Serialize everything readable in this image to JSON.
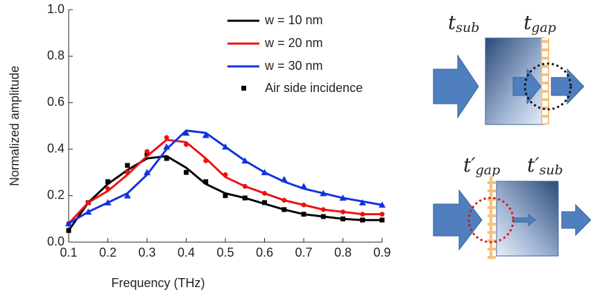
{
  "chart_data": {
    "type": "line",
    "xlabel": "Frequency (THz)",
    "ylabel": "Normalized amplitude",
    "x": [
      0.1,
      0.15,
      0.2,
      0.25,
      0.3,
      0.35,
      0.4,
      0.45,
      0.5,
      0.55,
      0.6,
      0.65,
      0.7,
      0.75,
      0.8,
      0.85,
      0.9
    ],
    "series": [
      {
        "name": "w = 10 nm",
        "color": "#000000",
        "marker": "square",
        "values": [
          0.05,
          0.17,
          0.25,
          0.31,
          0.36,
          0.37,
          0.32,
          0.25,
          0.21,
          0.19,
          0.165,
          0.14,
          0.12,
          0.11,
          0.1,
          0.095,
          0.095
        ],
        "marker_values": [
          0.05,
          0.17,
          0.26,
          0.33,
          0.38,
          0.36,
          0.3,
          0.26,
          0.2,
          0.19,
          0.17,
          0.14,
          0.12,
          0.11,
          0.1,
          0.095,
          0.095
        ]
      },
      {
        "name": "w = 20 nm",
        "color": "#ee1111",
        "marker": "circle",
        "values": [
          0.08,
          0.17,
          0.22,
          0.29,
          0.37,
          0.44,
          0.43,
          0.36,
          0.28,
          0.24,
          0.21,
          0.18,
          0.16,
          0.14,
          0.13,
          0.12,
          0.12
        ],
        "marker_values": [
          0.08,
          0.17,
          0.23,
          0.3,
          0.39,
          0.45,
          0.42,
          0.35,
          0.29,
          0.24,
          0.21,
          0.18,
          0.16,
          0.14,
          0.13,
          0.12,
          0.12
        ]
      },
      {
        "name": "w = 30 nm",
        "color": "#1133dd",
        "marker": "triangle",
        "values": [
          0.08,
          0.13,
          0.17,
          0.21,
          0.29,
          0.4,
          0.48,
          0.47,
          0.41,
          0.35,
          0.3,
          0.26,
          0.23,
          0.21,
          0.19,
          0.175,
          0.16
        ],
        "marker_values": [
          0.08,
          0.13,
          0.17,
          0.2,
          0.3,
          0.41,
          0.47,
          0.46,
          0.41,
          0.35,
          0.3,
          0.27,
          0.24,
          0.21,
          0.19,
          0.17,
          0.16
        ]
      }
    ],
    "marker_legend": "Air side incidence",
    "xlim": [
      0.1,
      0.9
    ],
    "xticks": [
      0.1,
      0.2,
      0.3,
      0.4,
      0.5,
      0.6,
      0.7,
      0.8,
      0.9
    ],
    "ylim": [
      0,
      1
    ],
    "yticks": [
      {
        "value": 0,
        "label": "0.0"
      },
      0.2,
      0.4,
      0.6,
      0.8,
      {
        "value": 1,
        "label": "1.0"
      }
    ]
  },
  "diagram": {
    "top_labels": [
      {
        "symbol": "t",
        "subscript": "sub"
      },
      {
        "symbol": "t",
        "subscript": "gap"
      }
    ],
    "bottom_labels": [
      {
        "symbol": "t′",
        "subscript": "gap"
      },
      {
        "symbol": "t′",
        "subscript": "sub"
      }
    ]
  }
}
